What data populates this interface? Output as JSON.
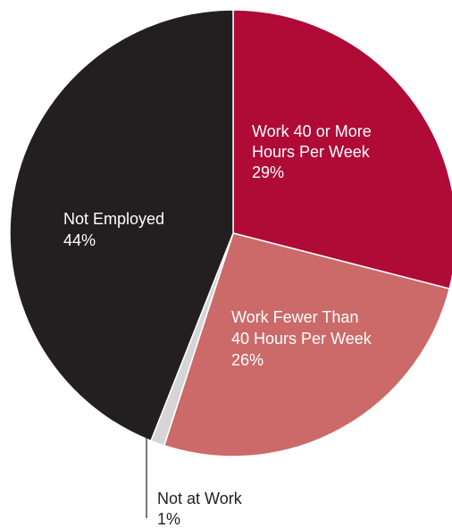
{
  "chart_data": {
    "type": "pie",
    "title": "",
    "start_angle_deg": 0,
    "direction": "clockwise",
    "slices": [
      {
        "label_lines": [
          "Work 40 or More",
          "Hours Per Week"
        ],
        "value": 29,
        "value_text": "29%",
        "color": "#B00A37",
        "text_color": "#ffffff"
      },
      {
        "label_lines": [
          "Work Fewer Than",
          "40 Hours Per Week"
        ],
        "value": 26,
        "value_text": "26%",
        "color": "#CB6A69",
        "text_color": "#ffffff"
      },
      {
        "label_lines": [
          "Not at Work"
        ],
        "value": 1,
        "value_text": "1%",
        "color": "#D5D5D7",
        "text_color": "#231F20",
        "label_outside": true
      },
      {
        "label_lines": [
          "Not Employed"
        ],
        "value": 44,
        "value_text": "44%",
        "color": "#231F20",
        "text_color": "#ffffff"
      }
    ]
  }
}
